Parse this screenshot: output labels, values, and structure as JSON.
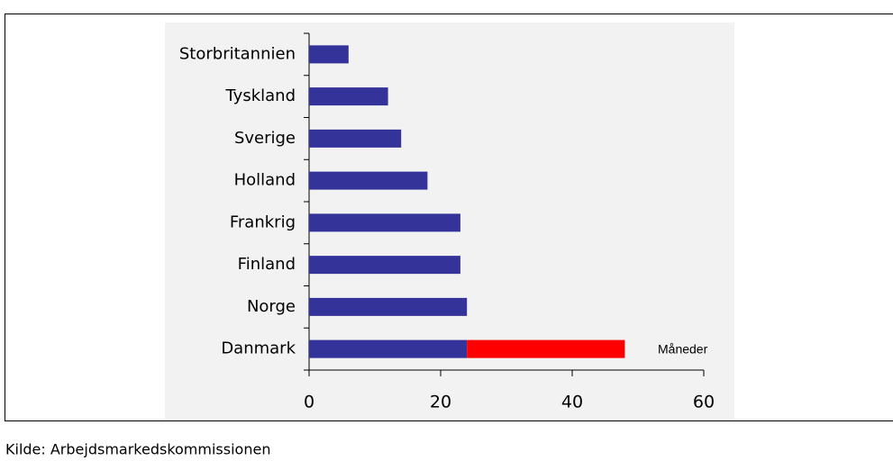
{
  "chart_data": {
    "type": "bar",
    "orientation": "horizontal",
    "stacked": true,
    "categories": [
      "Storbritannien",
      "Tyskland",
      "Sverige",
      "Holland",
      "Frankrig",
      "Finland",
      "Norge",
      "Danmark"
    ],
    "series": [
      {
        "color": "#333399",
        "values": [
          6,
          12,
          14,
          18,
          23,
          23,
          24,
          24
        ]
      },
      {
        "color": "#ff0000",
        "values": [
          null,
          null,
          null,
          null,
          null,
          null,
          null,
          24
        ]
      }
    ],
    "xlim": [
      0,
      60
    ],
    "xticks": [
      0,
      20,
      40,
      60
    ],
    "annotation": "Måneder",
    "source": "Kilde: Arbejdsmarkedskommissionen"
  }
}
